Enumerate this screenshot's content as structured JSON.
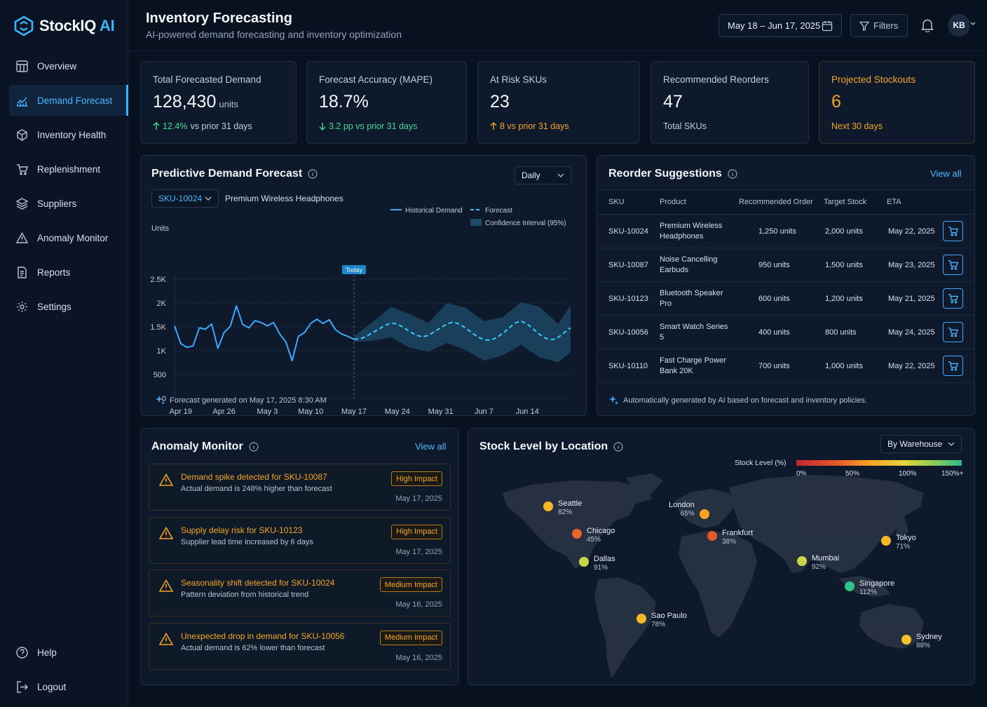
{
  "app": {
    "name": "StockIQ",
    "name_suffix": "AI"
  },
  "sidebar": {
    "items": [
      {
        "label": "Overview",
        "icon": "grid-icon"
      },
      {
        "label": "Demand Forecast",
        "icon": "trend-chart-icon",
        "active": true
      },
      {
        "label": "Inventory Health",
        "icon": "box-heart-icon"
      },
      {
        "label": "Replenishment",
        "icon": "cart-icon"
      },
      {
        "label": "Suppliers",
        "icon": "stack-icon"
      },
      {
        "label": "Anomaly Monitor",
        "icon": "warning-icon"
      },
      {
        "label": "Reports",
        "icon": "report-icon"
      },
      {
        "label": "Settings",
        "icon": "gear-icon"
      }
    ],
    "bottom": [
      {
        "label": "Help",
        "icon": "help-icon"
      },
      {
        "label": "Logout",
        "icon": "logout-icon"
      }
    ]
  },
  "header": {
    "title": "Inventory Forecasting",
    "subtitle": "AI-powered demand forecasting and inventory optimization",
    "date_range": "May 18 – Jun 17, 2025",
    "filters_label": "Filters",
    "avatar_initials": "KB"
  },
  "kpis": [
    {
      "label": "Total Forecasted Demand",
      "value": "128,430",
      "unit": "units",
      "delta": "12.4%",
      "delta_suffix": "vs prior 31 days",
      "direction": "up",
      "tone": "green"
    },
    {
      "label": "Forecast Accuracy (MAPE)",
      "value": "18.7%",
      "unit": "",
      "delta": "3.2 pp vs prior 31 days",
      "delta_suffix": "",
      "direction": "down",
      "tone": "green"
    },
    {
      "label": "At Risk SKUs",
      "value": "23",
      "unit": "",
      "delta": "8 vs prior 31 days",
      "delta_suffix": "",
      "direction": "up",
      "tone": "orange"
    },
    {
      "label": "Recommended Reorders",
      "value": "47",
      "unit": "",
      "delta": "Total SKUs",
      "delta_suffix": "",
      "direction": "none",
      "tone": "muted"
    },
    {
      "label": "Projected Stockouts",
      "value": "6",
      "unit": "",
      "delta": "Next 30 days",
      "delta_suffix": "",
      "direction": "none",
      "tone": "orange"
    }
  ],
  "forecast_panel": {
    "title": "Predictive Demand Forecast",
    "granularity": "Daily",
    "sku": "SKU-10024",
    "product": "Premium Wireless Headphones",
    "legend": {
      "historical": "Historical Demand",
      "forecast": "Forecast",
      "interval": "Confidence Interval (95%)"
    },
    "today_label": "Today",
    "footer": "Forecast generated on May 17, 2025 8:30 AM"
  },
  "chart_data": {
    "type": "line",
    "ylabel": "Units",
    "xlabel": "",
    "ylim": [
      0,
      2500
    ],
    "y_ticks": [
      "0",
      "500",
      "1K",
      "1.5K",
      "2K",
      "2.5K"
    ],
    "y_tick_values": [
      0,
      500,
      1000,
      1500,
      2000,
      2500
    ],
    "x_ticks": [
      "Apr 19",
      "Apr 26",
      "May 3",
      "May 10",
      "May 17",
      "May 24",
      "May 31",
      "Jun 7",
      "Jun 14"
    ],
    "x_tick_days": [
      1,
      8,
      15,
      22,
      29,
      36,
      43,
      50,
      57
    ],
    "today_day": 29,
    "grid": true,
    "legend_position": "top-right",
    "series": [
      {
        "name": "Historical Demand",
        "style": "solid",
        "days": [
          0,
          1,
          2,
          3,
          4,
          5,
          6,
          7,
          8,
          9,
          10,
          11,
          12,
          13,
          14,
          15,
          16,
          17,
          18,
          19,
          20,
          21,
          22,
          23,
          24,
          25,
          26,
          27,
          28,
          29
        ],
        "values": [
          1520,
          1150,
          1070,
          1100,
          1480,
          1450,
          1560,
          1050,
          1380,
          1510,
          1940,
          1550,
          1480,
          1630,
          1590,
          1520,
          1590,
          1350,
          1180,
          790,
          1300,
          1380,
          1570,
          1660,
          1570,
          1650,
          1440,
          1350,
          1300,
          1240
        ]
      },
      {
        "name": "Forecast",
        "style": "dashed",
        "days": [
          29,
          30,
          31,
          32,
          33,
          34,
          35,
          36,
          37,
          38,
          39,
          40,
          41,
          42,
          43,
          44,
          45,
          46,
          47,
          48,
          49,
          50,
          51,
          52,
          53,
          54,
          55,
          56,
          57,
          58,
          59,
          60,
          61,
          62,
          63,
          64
        ],
        "values": [
          1240,
          1250,
          1300,
          1380,
          1450,
          1530,
          1580,
          1560,
          1490,
          1400,
          1330,
          1290,
          1320,
          1400,
          1480,
          1560,
          1600,
          1560,
          1480,
          1380,
          1290,
          1230,
          1220,
          1270,
          1360,
          1470,
          1580,
          1620,
          1560,
          1450,
          1340,
          1260,
          1230,
          1280,
          1380,
          1480
        ]
      }
    ],
    "confidence_interval": {
      "name": "Confidence Interval (95%)",
      "days": [
        29,
        32,
        35,
        38,
        41,
        44,
        47,
        50,
        53,
        56,
        59,
        62,
        64
      ],
      "lower": [
        1180,
        1210,
        1280,
        1060,
        980,
        1160,
        1020,
        790,
        900,
        1120,
        860,
        760,
        970
      ],
      "upper": [
        1300,
        1600,
        1920,
        1770,
        1580,
        2000,
        1900,
        1620,
        1700,
        2020,
        1920,
        1560,
        1950
      ]
    }
  },
  "reorder": {
    "title": "Reorder Suggestions",
    "view_all": "View all",
    "columns": [
      "SKU",
      "Product",
      "Recommended Order",
      "Target Stock",
      "ETA"
    ],
    "rows": [
      {
        "sku": "SKU-10024",
        "product": "Premium Wireless Headphones",
        "order": "1,250 units",
        "target": "2,000 units",
        "eta": "May 22, 2025"
      },
      {
        "sku": "SKU-10087",
        "product": "Noise Cancelling Earbuds",
        "order": "950 units",
        "target": "1,500 units",
        "eta": "May 23, 2025"
      },
      {
        "sku": "SKU-10123",
        "product": "Bluetooth Speaker Pro",
        "order": "600 units",
        "target": "1,200 units",
        "eta": "May 21, 2025"
      },
      {
        "sku": "SKU-10056",
        "product": "Smart Watch Series 5",
        "order": "400 units",
        "target": "800 units",
        "eta": "May 24, 2025"
      },
      {
        "sku": "SKU-10110",
        "product": "Fast Charge Power Bank 20K",
        "order": "700 units",
        "target": "1,000 units",
        "eta": "May 22, 2025"
      }
    ],
    "footer": "Automatically generated by AI based on forecast and inventory policies."
  },
  "anomalies": {
    "title": "Anomaly Monitor",
    "view_all": "View all",
    "items": [
      {
        "title": "Demand spike detected for SKU-10087",
        "desc": "Actual demand is 248% higher than forecast",
        "impact": "High Impact",
        "date": "May 17, 2025"
      },
      {
        "title": "Supply delay risk for SKU-10123",
        "desc": "Supplier lead time increased by 6 days",
        "impact": "High Impact",
        "date": "May 17, 2025"
      },
      {
        "title": "Seasonality shift detected for SKU-10024",
        "desc": "Pattern deviation from historical trend",
        "impact": "Medium Impact",
        "date": "May 16, 2025"
      },
      {
        "title": "Unexpected drop in demand for SKU-10056",
        "desc": "Actual demand is 62% lower than forecast",
        "impact": "Medium Impact",
        "date": "May 16, 2025"
      }
    ]
  },
  "stock_map": {
    "title": "Stock Level by Location",
    "group_by": "By Warehouse",
    "scale_label": "Stock Level (%)",
    "scale_ticks": [
      "0%",
      "50%",
      "100%",
      "150%+"
    ],
    "cities": [
      {
        "name": "Seattle",
        "pct": "82%",
        "color": "#f5b82a"
      },
      {
        "name": "Chicago",
        "pct": "45%",
        "color": "#e8662c"
      },
      {
        "name": "Dallas",
        "pct": "91%",
        "color": "#c9d64a"
      },
      {
        "name": "London",
        "pct": "65%",
        "color": "#f5a524"
      },
      {
        "name": "Frankfurt",
        "pct": "38%",
        "color": "#e35a2b"
      },
      {
        "name": "Mumbai",
        "pct": "92%",
        "color": "#c9d64a"
      },
      {
        "name": "Tokyo",
        "pct": "71%",
        "color": "#f5b82a"
      },
      {
        "name": "Singapore",
        "pct": "112%",
        "color": "#2fc28a"
      },
      {
        "name": "Sao Paulo",
        "pct": "78%",
        "color": "#f5b82a"
      },
      {
        "name": "Sydney",
        "pct": "88%",
        "color": "#f5c22a"
      }
    ]
  }
}
